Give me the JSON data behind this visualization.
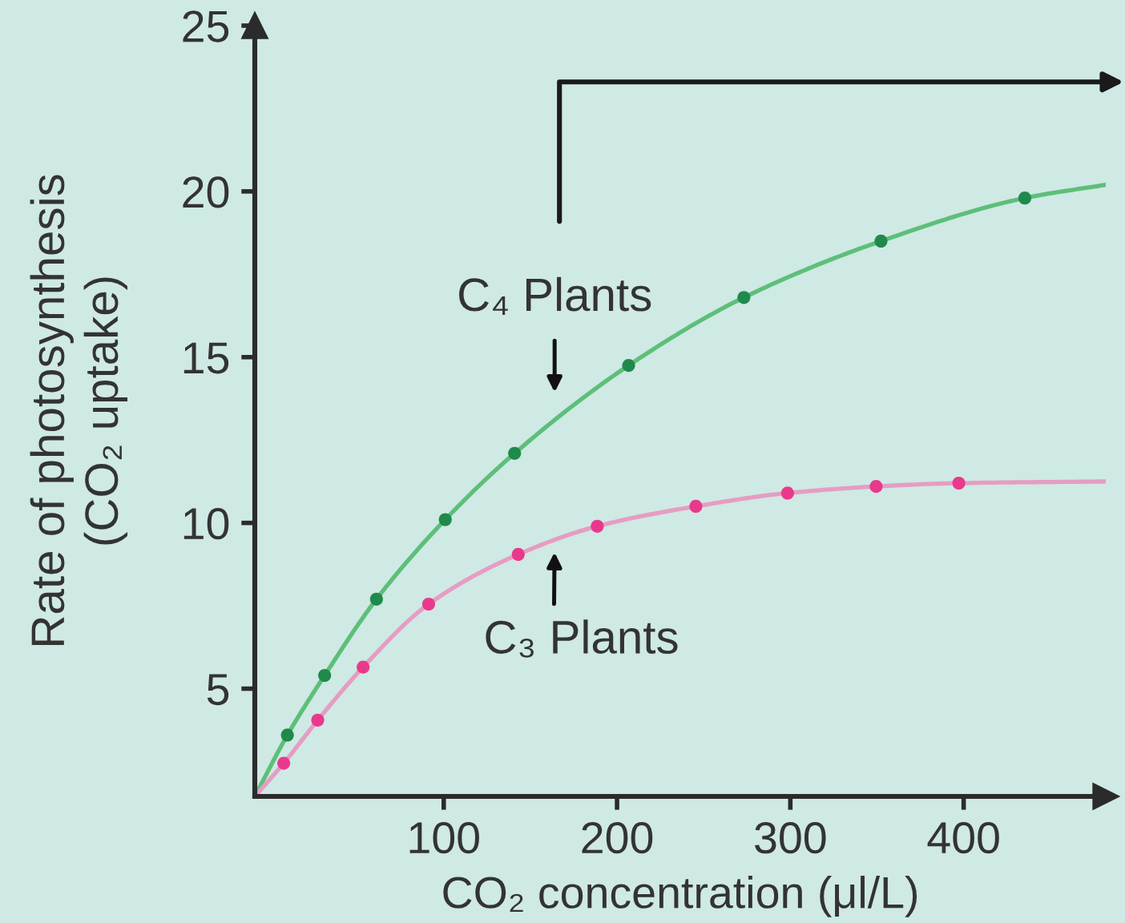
{
  "chart_data": {
    "type": "line",
    "xlabel": "CO₂ concentration (μl/L)",
    "ylabel": "Rate of photosynthesis\n(CO₂ uptake)",
    "xlim": [
      -9,
      482
    ],
    "ylim": [
      1.75,
      25
    ],
    "xticks": [
      100,
      200,
      300,
      400
    ],
    "yticks": [
      5,
      10,
      15,
      20,
      25
    ],
    "series": [
      {
        "color": "#5dbf79",
        "x": [
          -9,
          9.8,
          31.3,
          61.2,
          100.9,
          140.9,
          206.7,
          273.2,
          352.3,
          435.3,
          482
        ],
        "values": [
          1.75,
          3.6,
          5.4,
          7.7,
          10.1,
          12.1,
          14.75,
          16.8,
          18.5,
          19.8,
          20.2
        ]
      },
      {
        "type": "scatter",
        "color": "#1f8a4c",
        "marker": "circle",
        "x": [
          9.8,
          31.3,
          61.2,
          100.9,
          140.9,
          206.7,
          273.2,
          352.3,
          435.3
        ],
        "values": [
          3.6,
          5.4,
          7.7,
          10.1,
          12.1,
          14.75,
          16.8,
          18.5,
          19.8
        ]
      },
      {
        "color": "#e69cc3",
        "x": [
          -9,
          7.7,
          27.3,
          53.5,
          91.3,
          143.0,
          188.6,
          245.5,
          298.4,
          349.5,
          397.2,
          482
        ],
        "values": [
          1.75,
          2.75,
          4.05,
          5.65,
          7.55,
          9.05,
          9.9,
          10.5,
          10.9,
          11.1,
          11.2,
          11.25
        ]
      },
      {
        "type": "scatter",
        "color": "#e9398d",
        "marker": "circle",
        "x": [
          7.7,
          27.3,
          53.5,
          91.3,
          143.0,
          188.6,
          245.5,
          298.4,
          349.5,
          397.2
        ],
        "values": [
          2.75,
          4.05,
          5.65,
          7.55,
          9.05,
          9.9,
          10.5,
          10.9,
          11.1,
          11.2
        ]
      }
    ],
    "annotations": [
      {
        "text": "C₄ Plants",
        "x": 164,
        "y": 13.0
      },
      {
        "text": "C₃ Plants",
        "x": 164,
        "y": 9.45
      }
    ]
  }
}
